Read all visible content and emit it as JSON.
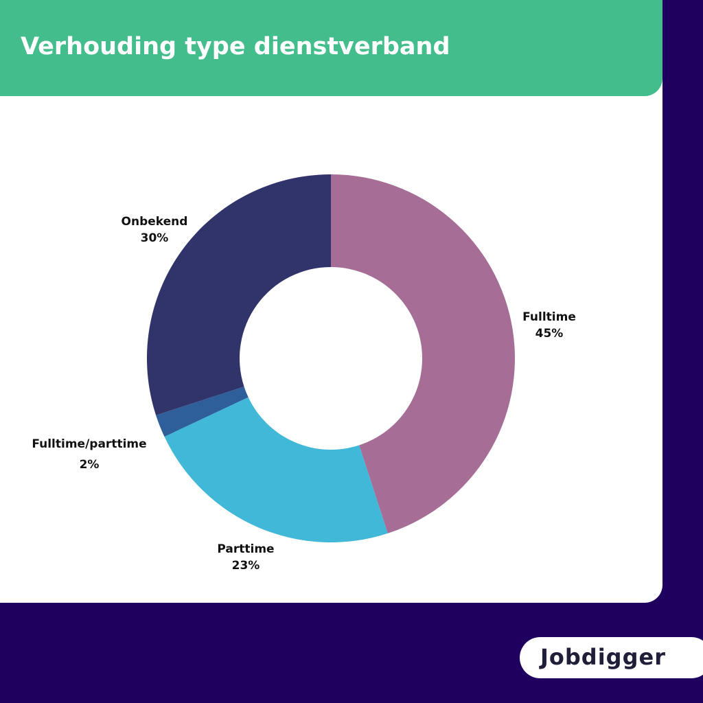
{
  "chart_data": {
    "type": "pie",
    "title": "Verhouding type dienstverband",
    "categories": [
      "Fulltime",
      "Parttime",
      "Fulltime/parttime",
      "Onbekend"
    ],
    "values": [
      45,
      23,
      2,
      30
    ],
    "value_labels": [
      "45%",
      "23%",
      "2%",
      "30%"
    ],
    "colors": [
      "#a66e97",
      "#42b8d8",
      "#2f5f9a",
      "#31336b"
    ]
  },
  "brand": "Jobdigger"
}
